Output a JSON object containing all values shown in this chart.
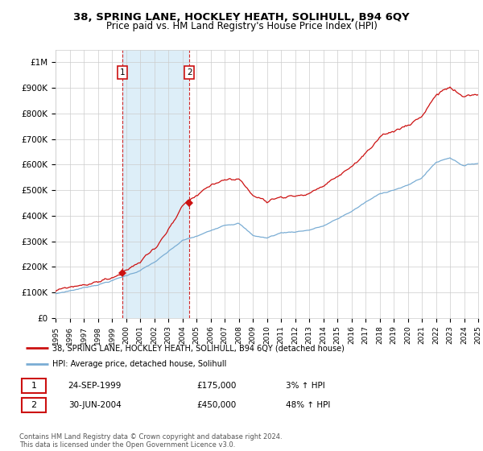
{
  "title": "38, SPRING LANE, HOCKLEY HEATH, SOLIHULL, B94 6QY",
  "subtitle": "Price paid vs. HM Land Registry's House Price Index (HPI)",
  "legend_line1": "38, SPRING LANE, HOCKLEY HEATH, SOLIHULL, B94 6QY (detached house)",
  "legend_line2": "HPI: Average price, detached house, Solihull",
  "transaction1_date": "24-SEP-1999",
  "transaction1_price": "£175,000",
  "transaction1_hpi": "3% ↑ HPI",
  "transaction2_date": "30-JUN-2004",
  "transaction2_price": "£450,000",
  "transaction2_hpi": "48% ↑ HPI",
  "footer": "Contains HM Land Registry data © Crown copyright and database right 2024.\nThis data is licensed under the Open Government Licence v3.0.",
  "hpi_color": "#7aadd4",
  "property_color": "#cc1111",
  "shade_color": "#ddeef8",
  "ylim": [
    0,
    1050000
  ],
  "yticks": [
    0,
    100000,
    200000,
    300000,
    400000,
    500000,
    600000,
    700000,
    800000,
    900000,
    1000000
  ],
  "ytick_labels": [
    "£0",
    "£100K",
    "£200K",
    "£300K",
    "£400K",
    "£500K",
    "£600K",
    "£700K",
    "£800K",
    "£900K",
    "£1M"
  ],
  "x_start_year": 1995,
  "x_end_year": 2025,
  "transaction1_year": 1999.73,
  "transaction2_year": 2004.5,
  "hpi_scale_factor": 1.48
}
